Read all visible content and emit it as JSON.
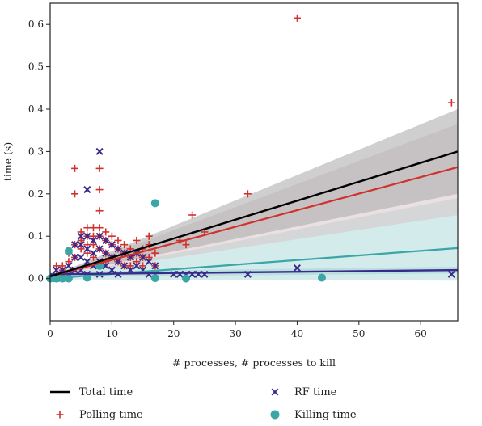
{
  "chart_data": {
    "type": "scatter",
    "xlabel": "# processes, # processes to kill",
    "ylabel": "time (s)",
    "xlim": [
      0,
      66
    ],
    "ylim": [
      -0.1,
      0.65
    ],
    "xticks": [
      0,
      10,
      20,
      30,
      40,
      50,
      60
    ],
    "yticks": [
      0.0,
      0.1,
      0.2,
      0.3,
      0.4,
      0.5,
      0.6
    ],
    "grid": false,
    "legend_position": "bottom",
    "colors": {
      "total": "#000000",
      "polling": "#d0312d",
      "rf": "#3a2a8c",
      "killing": "#3aa6a6",
      "band_gray": "#a8a8a8",
      "band_teal": "#9fd3d3",
      "band_pink": "#d6c2c6"
    },
    "legend": [
      {
        "label": "Total time",
        "kind": "line",
        "series": "total"
      },
      {
        "label": "RF time",
        "kind": "x",
        "series": "rf"
      },
      {
        "label": "Polling time",
        "kind": "plus",
        "series": "polling"
      },
      {
        "label": "Killing time",
        "kind": "circle",
        "series": "killing"
      }
    ],
    "fit_lines": [
      {
        "series": "total",
        "x": [
          0,
          66
        ],
        "y": [
          0.005,
          0.3
        ],
        "band": [
          [
            0.005,
            0.005
          ],
          [
            0.2,
            0.4
          ]
        ]
      },
      {
        "series": "polling",
        "x": [
          0,
          66
        ],
        "y": [
          0.005,
          0.263
        ],
        "band": [
          [
            0.005,
            0.005
          ],
          [
            0.15,
            0.365
          ]
        ]
      },
      {
        "series": "killing",
        "x": [
          0,
          66
        ],
        "y": [
          0.0,
          0.072
        ],
        "band": [
          [
            -0.002,
            0.002
          ],
          [
            -0.005,
            0.19
          ]
        ]
      },
      {
        "series": "rf",
        "x": [
          0,
          66
        ],
        "y": [
          0.01,
          0.02
        ],
        "band": [
          [
            0.004,
            0.016
          ],
          [
            0.012,
            0.028
          ]
        ]
      }
    ],
    "series": [
      {
        "name": "Polling time",
        "key": "polling",
        "points": [
          [
            1,
            0.01
          ],
          [
            1,
            0.03
          ],
          [
            2,
            0.02
          ],
          [
            2,
            0.03
          ],
          [
            3,
            0.04
          ],
          [
            3,
            0.06
          ],
          [
            4,
            0.26
          ],
          [
            4,
            0.2
          ],
          [
            4,
            0.08
          ],
          [
            4,
            0.05
          ],
          [
            5,
            0.09
          ],
          [
            5,
            0.11
          ],
          [
            5,
            0.07
          ],
          [
            6,
            0.12
          ],
          [
            6,
            0.1
          ],
          [
            6,
            0.08
          ],
          [
            6,
            0.06
          ],
          [
            7,
            0.12
          ],
          [
            7,
            0.1
          ],
          [
            7,
            0.08
          ],
          [
            7,
            0.05
          ],
          [
            8,
            0.26
          ],
          [
            8,
            0.21
          ],
          [
            8,
            0.16
          ],
          [
            8,
            0.12
          ],
          [
            8,
            0.1
          ],
          [
            8,
            0.07
          ],
          [
            9,
            0.11
          ],
          [
            9,
            0.09
          ],
          [
            9,
            0.06
          ],
          [
            9,
            0.04
          ],
          [
            10,
            0.1
          ],
          [
            10,
            0.08
          ],
          [
            10,
            0.05
          ],
          [
            11,
            0.09
          ],
          [
            11,
            0.07
          ],
          [
            11,
            0.04
          ],
          [
            12,
            0.08
          ],
          [
            12,
            0.06
          ],
          [
            12,
            0.03
          ],
          [
            13,
            0.07
          ],
          [
            13,
            0.05
          ],
          [
            13,
            0.03
          ],
          [
            14,
            0.09
          ],
          [
            14,
            0.06
          ],
          [
            14,
            0.04
          ],
          [
            15,
            0.07
          ],
          [
            15,
            0.05
          ],
          [
            15,
            0.03
          ],
          [
            16,
            0.1
          ],
          [
            16,
            0.08
          ],
          [
            16,
            0.05
          ],
          [
            17,
            0.06
          ],
          [
            17,
            0.03
          ],
          [
            21,
            0.09
          ],
          [
            22,
            0.08
          ],
          [
            23,
            0.15
          ],
          [
            25,
            0.11
          ],
          [
            32,
            0.2
          ],
          [
            40,
            0.615
          ],
          [
            65,
            0.415
          ]
        ]
      },
      {
        "name": "RF time",
        "key": "rf",
        "points": [
          [
            1,
            0.0
          ],
          [
            1,
            0.02
          ],
          [
            2,
            0.01
          ],
          [
            2,
            0.02
          ],
          [
            3,
            0.01
          ],
          [
            3,
            0.03
          ],
          [
            4,
            0.08
          ],
          [
            4,
            0.05
          ],
          [
            4,
            0.02
          ],
          [
            5,
            0.1
          ],
          [
            5,
            0.08
          ],
          [
            5,
            0.05
          ],
          [
            5,
            0.02
          ],
          [
            6,
            0.21
          ],
          [
            6,
            0.1
          ],
          [
            6,
            0.07
          ],
          [
            6,
            0.04
          ],
          [
            6,
            0.01
          ],
          [
            7,
            0.09
          ],
          [
            7,
            0.06
          ],
          [
            7,
            0.03
          ],
          [
            8,
            0.3
          ],
          [
            8,
            0.1
          ],
          [
            8,
            0.07
          ],
          [
            8,
            0.04
          ],
          [
            8,
            0.01
          ],
          [
            9,
            0.09
          ],
          [
            9,
            0.06
          ],
          [
            9,
            0.03
          ],
          [
            10,
            0.08
          ],
          [
            10,
            0.05
          ],
          [
            10,
            0.02
          ],
          [
            11,
            0.07
          ],
          [
            11,
            0.04
          ],
          [
            11,
            0.01
          ],
          [
            12,
            0.06
          ],
          [
            12,
            0.03
          ],
          [
            13,
            0.05
          ],
          [
            13,
            0.02
          ],
          [
            14,
            0.06
          ],
          [
            14,
            0.03
          ],
          [
            15,
            0.05
          ],
          [
            15,
            0.02
          ],
          [
            16,
            0.04
          ],
          [
            16,
            0.01
          ],
          [
            17,
            0.03
          ],
          [
            17,
            0.01
          ],
          [
            20,
            0.01
          ],
          [
            21,
            0.01
          ],
          [
            22,
            0.01
          ],
          [
            23,
            0.01
          ],
          [
            24,
            0.01
          ],
          [
            25,
            0.01
          ],
          [
            32,
            0.01
          ],
          [
            40,
            0.025
          ],
          [
            65,
            0.01
          ]
        ]
      },
      {
        "name": "Killing time",
        "key": "killing",
        "points": [
          [
            0,
            0.0
          ],
          [
            1,
            0.0
          ],
          [
            2,
            0.0
          ],
          [
            3,
            0.0
          ],
          [
            3,
            0.065
          ],
          [
            6,
            0.002
          ],
          [
            8,
            0.03
          ],
          [
            17,
            0.178
          ],
          [
            17,
            0.001
          ],
          [
            22,
            0.0
          ],
          [
            44,
            0.002
          ]
        ]
      }
    ]
  }
}
